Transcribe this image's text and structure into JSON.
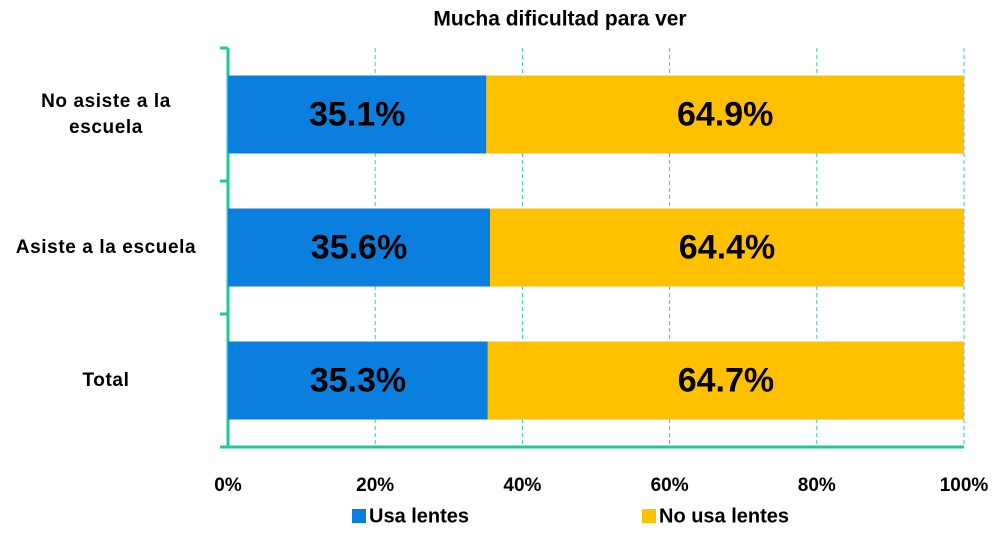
{
  "chart_data": {
    "type": "stacked_barh",
    "title": "Mucha dificultad para ver",
    "categories": [
      "No asiste a la escuela",
      "Asiste a la escuela",
      "Total"
    ],
    "series": [
      {
        "name": "Usa lentes",
        "color": "#0a7fdd",
        "values": [
          35.1,
          35.6,
          35.3
        ],
        "value_labels": [
          "35.1%",
          "35.6%",
          "35.3%"
        ]
      },
      {
        "name": "No usa lentes",
        "color": "#ffc000",
        "values": [
          64.9,
          64.4,
          64.7
        ],
        "value_labels": [
          "64.9%",
          "64.4%",
          "64.7%"
        ]
      }
    ],
    "xlim": [
      0,
      100
    ],
    "xticks": [
      {
        "value": 0,
        "label": "0%"
      },
      {
        "value": 20,
        "label": "20%"
      },
      {
        "value": 40,
        "label": "40%"
      },
      {
        "value": 60,
        "label": "60%"
      },
      {
        "value": 80,
        "label": "80%"
      },
      {
        "value": 100,
        "label": "100%"
      }
    ],
    "grid": true,
    "legend": "bottom"
  }
}
